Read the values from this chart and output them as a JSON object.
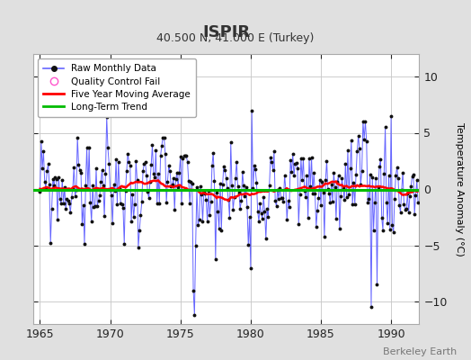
{
  "title": "ISPIR",
  "subtitle": "40.500 N, 41.000 E (Turkey)",
  "ylabel": "Temperature Anomaly (°C)",
  "watermark": "Berkeley Earth",
  "xlim": [
    1964.5,
    1992.0
  ],
  "ylim": [
    -12,
    12
  ],
  "yticks": [
    -10,
    -5,
    0,
    5,
    10
  ],
  "xticks": [
    1965,
    1970,
    1975,
    1980,
    1985,
    1990
  ],
  "background_color": "#e0e0e0",
  "plot_bg_color": "#ffffff",
  "grid_color": "#c8c8c8",
  "raw_line_color": "#6666ff",
  "raw_marker_color": "#111111",
  "moving_avg_color": "#ff0000",
  "trend_color": "#00bb00",
  "qc_fail_color": "#ff55cc",
  "legend_labels": [
    "Raw Monthly Data",
    "Quality Control Fail",
    "Five Year Moving Average",
    "Long-Term Trend"
  ],
  "seed": 99,
  "n_months": 324,
  "start_year": 1965.0
}
